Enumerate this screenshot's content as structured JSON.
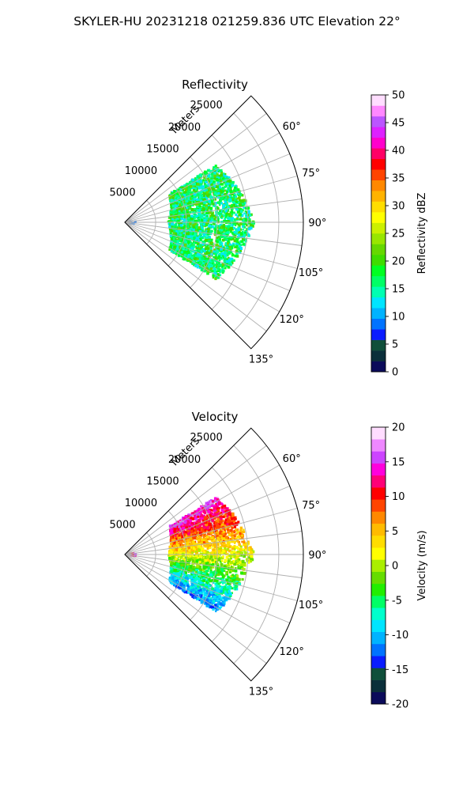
{
  "figure": {
    "title": "SKYLER-HU  20231218  021259.836 UTC Elevation 22°"
  },
  "chart_data": [
    {
      "type": "heatmap",
      "projection": "polar-sector",
      "title": "Reflectivity",
      "radial_label": "Meters",
      "radial_ticks": [
        "5000",
        "10000",
        "15000",
        "20000",
        "25000"
      ],
      "radial_tick_values": [
        5000,
        10000,
        15000,
        20000,
        25000
      ],
      "radial_max": 29000,
      "angle_ticks": [
        "60°",
        "75°",
        "90°",
        "105°",
        "120°",
        "135°"
      ],
      "angle_tick_values": [
        60,
        75,
        90,
        105,
        120,
        135
      ],
      "angle_range": [
        45,
        135
      ],
      "grid": true,
      "colorbar": {
        "label": "Reflectivity dBZ",
        "range": [
          0,
          50
        ],
        "ticks": [
          "0",
          "5",
          "10",
          "15",
          "20",
          "25",
          "30",
          "35",
          "40",
          "45",
          "50"
        ],
        "tick_values": [
          0,
          5,
          10,
          15,
          20,
          25,
          30,
          35,
          40,
          45,
          50
        ],
        "colormap": [
          "#0b0b5a",
          "#0b2f3a",
          "#104f3a",
          "#0a1cff",
          "#0073ff",
          "#00b3ff",
          "#00e5ff",
          "#00ffb2",
          "#00ff66",
          "#00ff22",
          "#3fdc00",
          "#66d800",
          "#99e600",
          "#ccf000",
          "#ffff00",
          "#ffdd00",
          "#ffb300",
          "#ff8800",
          "#ff4400",
          "#ff0000",
          "#ff0066",
          "#ff00cc",
          "#dd22ff",
          "#bb55ff",
          "#ff88ff",
          "#ffddff"
        ]
      },
      "echo_region": {
        "angle_range": [
          58,
          122
        ],
        "range_span": [
          7000,
          21000
        ],
        "dominant_values": [
          12,
          22
        ],
        "near_radar_value": 9
      }
    },
    {
      "type": "heatmap",
      "projection": "polar-sector",
      "title": "Velocity",
      "radial_label": "Meters",
      "radial_ticks": [
        "5000",
        "10000",
        "15000",
        "20000",
        "25000"
      ],
      "radial_tick_values": [
        5000,
        10000,
        15000,
        20000,
        25000
      ],
      "radial_max": 29000,
      "angle_ticks": [
        "60°",
        "75°",
        "90°",
        "105°",
        "120°",
        "135°"
      ],
      "angle_tick_values": [
        60,
        75,
        90,
        105,
        120,
        135
      ],
      "angle_range": [
        45,
        135
      ],
      "grid": true,
      "colorbar": {
        "label": "Velocity (m/s)",
        "range": [
          -20,
          20
        ],
        "ticks": [
          "-20",
          "-15",
          "-10",
          "-5",
          "0",
          "5",
          "10",
          "15",
          "20"
        ],
        "tick_values": [
          -20,
          -15,
          -10,
          -5,
          0,
          5,
          10,
          15,
          20
        ],
        "colormap": [
          "#0b0b5a",
          "#0b2f3a",
          "#104f3a",
          "#0a1cff",
          "#0073ff",
          "#00b3ff",
          "#00e5ff",
          "#00ffcc",
          "#00ff66",
          "#22ee00",
          "#66dd00",
          "#aaee00",
          "#ffff00",
          "#ffdd00",
          "#ffbb00",
          "#ff8800",
          "#ff4400",
          "#ff0000",
          "#ff0077",
          "#ff00dd",
          "#cc44ff",
          "#ee88ff",
          "#ffddff"
        ]
      },
      "echo_region": {
        "angle_range": [
          58,
          122
        ],
        "range_span": [
          7000,
          21000
        ],
        "value_trend": "+15 at 65° to -12 at 118°"
      }
    }
  ]
}
